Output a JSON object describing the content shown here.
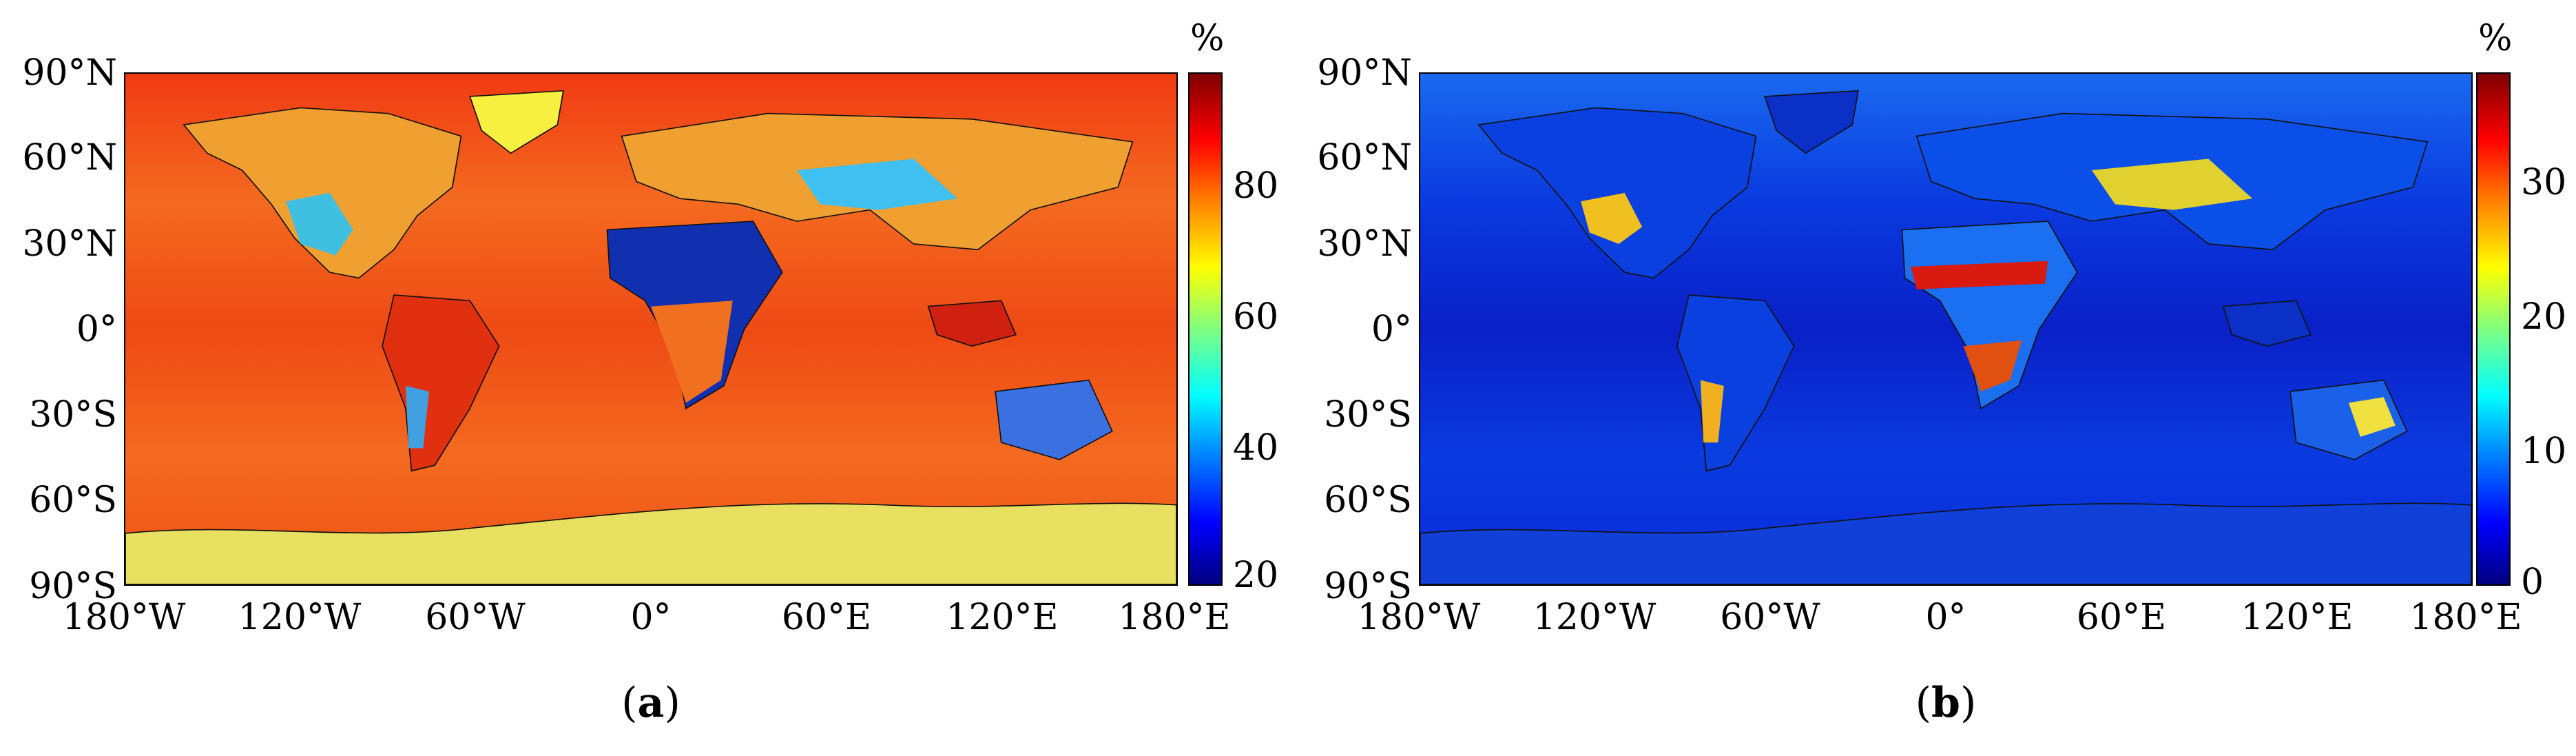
{
  "figure": {
    "panels": [
      {
        "id": "a",
        "caption_open": "(",
        "caption_letter": "a",
        "caption_close": ")",
        "colorbar": {
          "unit": "%",
          "ticks": [
            "80",
            "60",
            "40",
            "20"
          ],
          "tick_values": [
            80,
            60,
            40,
            20
          ],
          "range": [
            17,
            95
          ],
          "colormap": "jet"
        },
        "dominant_ocean_level": "orange-red (~75–85%)"
      },
      {
        "id": "b",
        "caption_open": "(",
        "caption_letter": "b",
        "caption_close": ")",
        "colorbar": {
          "unit": "%",
          "ticks": [
            "30",
            "20",
            "10",
            "0"
          ],
          "tick_values": [
            30,
            20,
            10,
            0
          ],
          "range": [
            0,
            38
          ],
          "colormap": "jet"
        },
        "dominant_ocean_level": "dark blue (~3–8%)"
      }
    ],
    "lat_ticks": [
      "90°N",
      "60°N",
      "30°N",
      "0°",
      "30°S",
      "60°S",
      "90°S"
    ],
    "lon_ticks": [
      "180°W",
      "120°W",
      "60°W",
      "0°",
      "60°E",
      "120°E",
      "180°E"
    ],
    "colors": {
      "ocean_a": "#f04a1a",
      "land_dry_a": "#1a3aa8",
      "ocean_b": "#0a2fd8",
      "land_hot_b": "#d81a10",
      "coastline": "#111111"
    }
  }
}
